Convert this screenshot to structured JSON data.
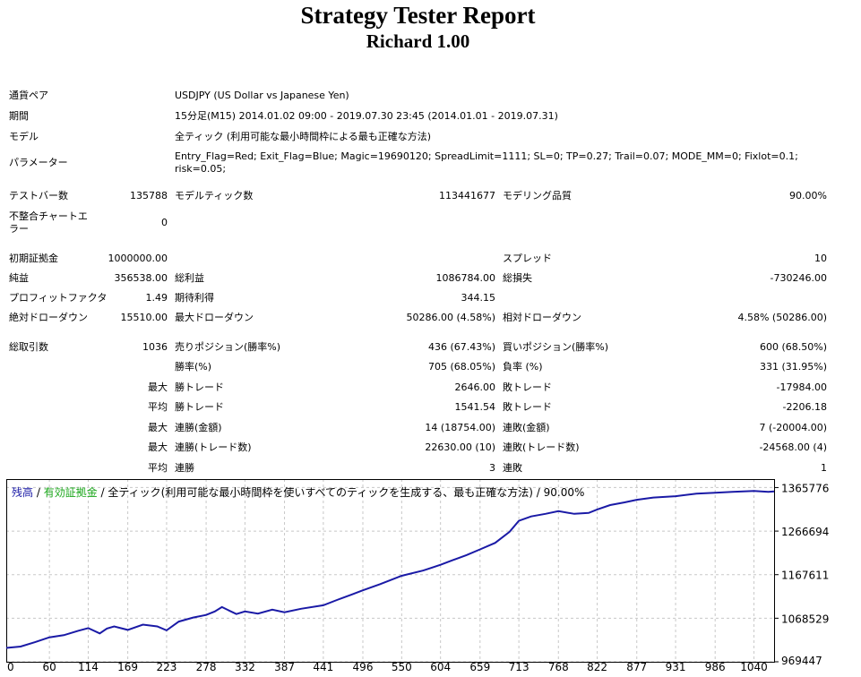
{
  "report": {
    "title": "Strategy Tester Report",
    "subtitle": "Richard  1.00"
  },
  "info": {
    "symbol_label": "通貨ペア",
    "symbol_value": "USDJPY (US Dollar vs Japanese Yen)",
    "period_label": "期間",
    "period_value": "15分足(M15) 2014.01.02 09:00 - 2019.07.30 23:45 (2014.01.01 - 2019.07.31)",
    "model_label": "モデル",
    "model_value": "全ティック (利用可能な最小時間枠による最も正確な方法)",
    "params_label": "パラメーター",
    "params_value": "Entry_Flag=Red; Exit_Flag=Blue; Magic=19690120; SpreadLimit=1111; SL=0; TP=0.27; Trail=0.07; MODE_MM=0; Fixlot=0.1; risk=0.05;"
  },
  "stats": {
    "bars_label": "テストバー数",
    "bars_value": "135788",
    "ticks_label": "モデルティック数",
    "ticks_value": "113441677",
    "quality_label": "モデリング品質",
    "quality_value": "90.00%",
    "mismatch_label": "不整合チャートエラー",
    "mismatch_value": "0",
    "deposit_label": "初期証拠金",
    "deposit_value": "1000000.00",
    "spread_label": "スプレッド",
    "spread_value": "10",
    "netprofit_label": "純益",
    "netprofit_value": "356538.00",
    "grossprofit_label": "総利益",
    "grossprofit_value": "1086784.00",
    "grossloss_label": "総損失",
    "grossloss_value": "-730246.00",
    "pf_label": "プロフィットファクタ",
    "pf_value": "1.49",
    "expected_label": "期待利得",
    "expected_value": "344.15",
    "absdd_label": "絶対ドローダウン",
    "absdd_value": "15510.00",
    "maxdd_label": "最大ドローダウン",
    "maxdd_value": "50286.00 (4.58%)",
    "reldd_label": "相対ドローダウン",
    "reldd_value": "4.58% (50286.00)",
    "trades_label": "総取引数",
    "trades_value": "1036",
    "short_label": "売りポジション(勝率%)",
    "short_value": "436 (67.43%)",
    "long_label": "買いポジション(勝率%)",
    "long_value": "600 (68.50%)",
    "win_label": "勝率(%)",
    "win_value": "705 (68.05%)",
    "loss_label": "負率 (%)",
    "loss_value": "331 (31.95%)",
    "max_label": "最大",
    "avg_label": "平均",
    "largest_win_label": "勝トレード",
    "largest_win_value": "2646.00",
    "largest_loss_label": "敗トレード",
    "largest_loss_value": "-17984.00",
    "avg_win_label": "勝トレード",
    "avg_win_value": "1541.54",
    "avg_loss_label": "敗トレード",
    "avg_loss_value": "-2206.18",
    "max_consec_wins_label": "連勝(金額)",
    "max_consec_wins_value": "14 (18754.00)",
    "max_consec_losses_label": "連敗(金額)",
    "max_consec_losses_value": "7 (-20004.00)",
    "max_consec_profit_label": "連勝(トレード数)",
    "max_consec_profit_value": "22630.00 (10)",
    "max_consec_loss_label": "連敗(トレード数)",
    "max_consec_loss_value": "-24568.00 (4)",
    "avg_consec_wins_label": "連勝",
    "avg_consec_wins_value": "3",
    "avg_consec_losses_label": "連敗",
    "avg_consec_losses_value": "1"
  },
  "chart_legend": {
    "balance": "残高",
    "sep1": " / ",
    "equity": "有効証拠金",
    "sep2": " / ",
    "model": "全ティック(利用可能な最小時間枠を使いすべてのティックを生成する、最も正確な方法)",
    "sep3": " / ",
    "quality": "90.00%"
  },
  "colors": {
    "balance": "#1a1aa6",
    "equity": "#1aa61a",
    "grid": "#c8c8c8",
    "axis": "#000000"
  },
  "chart_data": {
    "type": "line",
    "title": "",
    "xlabel": "",
    "ylabel": "",
    "xlim": [
      0,
      1068
    ],
    "ylim": [
      969447,
      1385000
    ],
    "x_ticks": [
      "0",
      "60",
      "114",
      "169",
      "223",
      "278",
      "332",
      "387",
      "441",
      "496",
      "550",
      "604",
      "659",
      "713",
      "768",
      "822",
      "877",
      "931",
      "986",
      "1040"
    ],
    "x_tick_values": [
      0,
      60,
      114,
      169,
      223,
      278,
      332,
      387,
      441,
      496,
      550,
      604,
      659,
      713,
      768,
      822,
      877,
      931,
      986,
      1040
    ],
    "y_ticks": [
      "969447",
      "1068529",
      "1167611",
      "1266694",
      "1365776"
    ],
    "y_tick_values": [
      969447,
      1068529,
      1167611,
      1266694,
      1365776
    ],
    "grid": true,
    "series": [
      {
        "name": "残高",
        "color": "#1a1aa6",
        "x": [
          0,
          20,
          40,
          60,
          80,
          100,
          114,
          130,
          140,
          150,
          169,
          190,
          210,
          223,
          240,
          260,
          278,
          290,
          300,
          320,
          332,
          350,
          370,
          387,
          410,
          441,
          460,
          480,
          496,
          520,
          550,
          580,
          604,
          620,
          640,
          659,
          680,
          700,
          713,
          730,
          750,
          768,
          790,
          810,
          822,
          840,
          860,
          877,
          900,
          931,
          960,
          986,
          1010,
          1040,
          1060,
          1068
        ],
        "y": [
          1001000,
          1004000,
          1014000,
          1025000,
          1030000,
          1040000,
          1046000,
          1034000,
          1045000,
          1050000,
          1042000,
          1054000,
          1050000,
          1041000,
          1061000,
          1070000,
          1076000,
          1084000,
          1094000,
          1078000,
          1084000,
          1079000,
          1088000,
          1082000,
          1090000,
          1098000,
          1110000,
          1122000,
          1132000,
          1146000,
          1165000,
          1177000,
          1190000,
          1200000,
          1212000,
          1225000,
          1240000,
          1265000,
          1290000,
          1300000,
          1306000,
          1312000,
          1306000,
          1308000,
          1316000,
          1326000,
          1332000,
          1338000,
          1343000,
          1346000,
          1352000,
          1354000,
          1356000,
          1358000,
          1356000,
          1357000
        ]
      }
    ]
  }
}
